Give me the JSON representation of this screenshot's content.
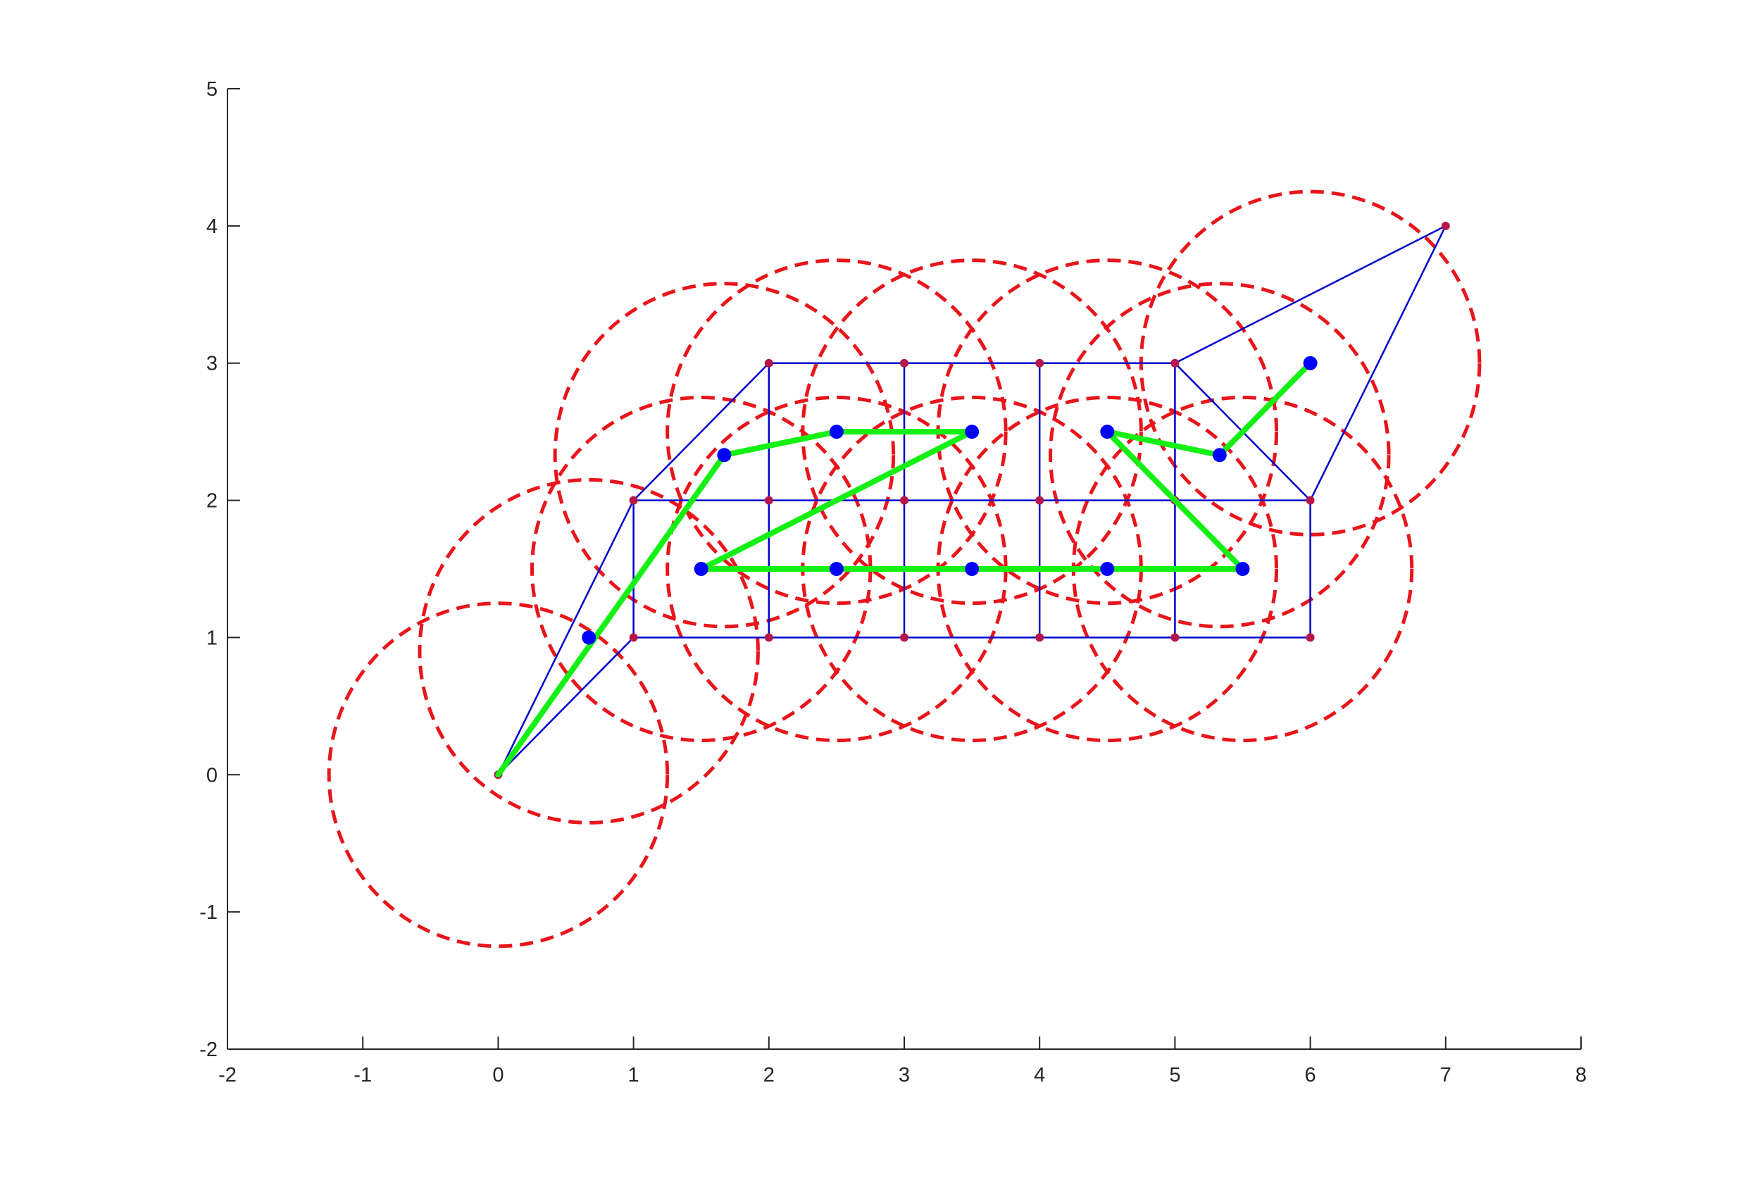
{
  "chart_data": {
    "type": "scatter",
    "title": "",
    "xlabel": "",
    "ylabel": "",
    "xlim": [
      -2,
      8
    ],
    "ylim": [
      -2,
      5
    ],
    "xticks": [
      -2,
      -1,
      0,
      1,
      2,
      3,
      4,
      5,
      6,
      7,
      8
    ],
    "yticks": [
      -2,
      -1,
      0,
      1,
      2,
      3,
      4,
      5
    ],
    "xtick_labels": [
      "-2",
      "-1",
      "0",
      "1",
      "2",
      "3",
      "4",
      "5",
      "6",
      "7",
      "8"
    ],
    "ytick_labels": [
      "-2",
      "-1",
      "0",
      "1",
      "2",
      "3",
      "4",
      "5"
    ],
    "grid": false,
    "legend": "none",
    "mesh_nodes": [
      [
        0,
        0
      ],
      [
        1,
        1
      ],
      [
        2,
        1
      ],
      [
        3,
        1
      ],
      [
        4,
        1
      ],
      [
        5,
        1
      ],
      [
        6,
        1
      ],
      [
        1,
        2
      ],
      [
        2,
        2
      ],
      [
        3,
        2
      ],
      [
        4,
        2
      ],
      [
        5,
        2
      ],
      [
        6,
        2
      ],
      [
        2,
        3
      ],
      [
        3,
        3
      ],
      [
        4,
        3
      ],
      [
        5,
        3
      ],
      [
        7,
        4
      ]
    ],
    "mesh_edges": [
      [
        [
          1,
          1
        ],
        [
          6,
          1
        ]
      ],
      [
        [
          1,
          2
        ],
        [
          6,
          2
        ]
      ],
      [
        [
          2,
          3
        ],
        [
          5,
          3
        ]
      ],
      [
        [
          1,
          1
        ],
        [
          1,
          2
        ]
      ],
      [
        [
          2,
          1
        ],
        [
          2,
          3
        ]
      ],
      [
        [
          3,
          1
        ],
        [
          3,
          3
        ]
      ],
      [
        [
          4,
          1
        ],
        [
          4,
          3
        ]
      ],
      [
        [
          5,
          1
        ],
        [
          5,
          3
        ]
      ],
      [
        [
          6,
          1
        ],
        [
          6,
          2
        ]
      ],
      [
        [
          0,
          0
        ],
        [
          1,
          1
        ]
      ],
      [
        [
          0,
          0
        ],
        [
          1,
          2
        ]
      ],
      [
        [
          1,
          2
        ],
        [
          2,
          3
        ]
      ],
      [
        [
          5,
          3
        ],
        [
          6,
          2
        ]
      ],
      [
        [
          5,
          3
        ],
        [
          7,
          4
        ]
      ],
      [
        [
          6,
          2
        ],
        [
          7,
          4
        ]
      ]
    ],
    "sensor_points": [
      [
        1.5,
        1.5
      ],
      [
        2.5,
        1.5
      ],
      [
        3.5,
        1.5
      ],
      [
        4.5,
        1.5
      ],
      [
        5.5,
        1.5
      ],
      [
        1.67,
        2.33
      ],
      [
        2.5,
        2.5
      ],
      [
        3.5,
        2.5
      ],
      [
        4.5,
        2.5
      ],
      [
        5.33,
        2.33
      ],
      [
        6,
        3
      ],
      [
        0.67,
        1.0
      ]
    ],
    "coverage_radius": 1.25,
    "coverage_circle_centers": [
      [
        0,
        0
      ],
      [
        0.67,
        0.9
      ],
      [
        1.5,
        1.5
      ],
      [
        2.5,
        1.5
      ],
      [
        3.5,
        1.5
      ],
      [
        4.5,
        1.5
      ],
      [
        5.5,
        1.5
      ],
      [
        1.67,
        2.33
      ],
      [
        2.5,
        2.5
      ],
      [
        3.5,
        2.5
      ],
      [
        4.5,
        2.5
      ],
      [
        5.33,
        2.33
      ],
      [
        6,
        3
      ]
    ],
    "path": [
      [
        0,
        0
      ],
      [
        1.67,
        2.33
      ],
      [
        2.5,
        2.5
      ],
      [
        3.5,
        2.5
      ],
      [
        1.5,
        1.5
      ],
      [
        5.5,
        1.5
      ],
      [
        4.5,
        2.5
      ],
      [
        5.33,
        2.33
      ],
      [
        6,
        3
      ]
    ],
    "colors": {
      "axis": "#262626",
      "mesh": "#0000d0",
      "node": "#b5174a",
      "sensor": "#0000ff",
      "circle": "#e8151b",
      "path": "#14f014"
    }
  }
}
